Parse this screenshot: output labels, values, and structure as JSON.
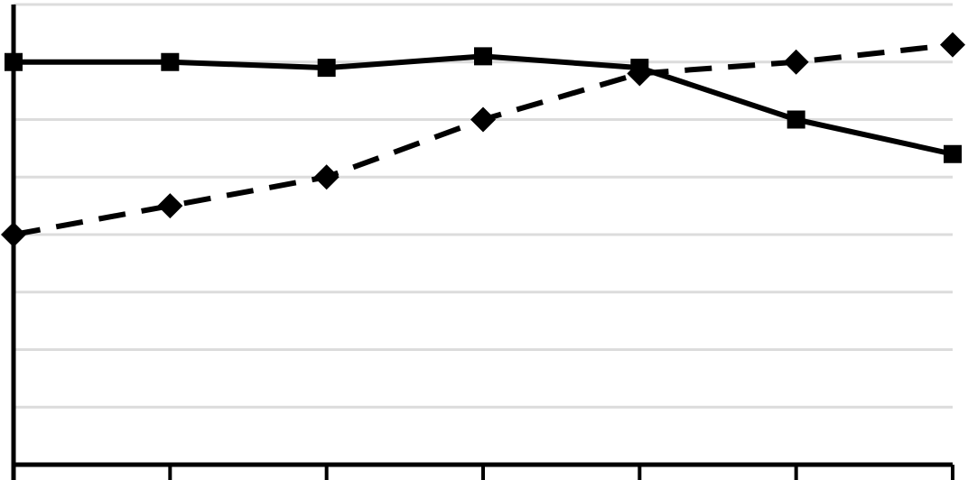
{
  "chart_data": {
    "type": "line",
    "categories": [
      null,
      null,
      null,
      null,
      null,
      null,
      null
    ],
    "series": [
      {
        "color": "#000000",
        "marker": "square",
        "dashed": false,
        "values": [
          7,
          7,
          6.9,
          7.1,
          6.9,
          6,
          5.4
        ]
      },
      {
        "color": "#000000",
        "marker": "diamond",
        "dashed": true,
        "values": [
          4,
          4.5,
          5,
          6,
          6.8,
          7,
          7.3
        ]
      }
    ],
    "ylim": [
      0,
      8
    ],
    "yticks": [
      1,
      2,
      3,
      4,
      5,
      6,
      7,
      8
    ],
    "grid": true
  }
}
